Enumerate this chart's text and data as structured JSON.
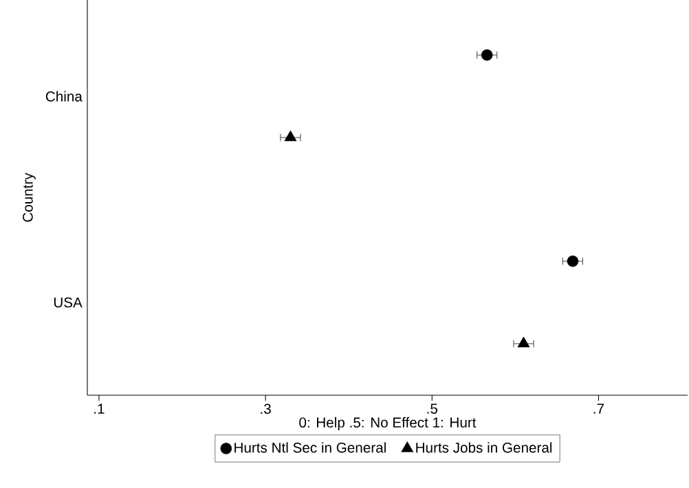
{
  "chart_data": {
    "type": "scatter",
    "orientation": "horizontal",
    "xlabel": "0: Help .5: No Effect 1: Hurt",
    "ylabel": "Country",
    "categories": [
      "China",
      "USA"
    ],
    "series": [
      {
        "name": "Hurts Ntl Sec in General",
        "color": "#000000",
        "marker": "circle",
        "values": [
          0.566,
          0.669
        ],
        "errors": [
          0.012,
          0.012
        ]
      },
      {
        "name": "Hurts Jobs in General",
        "color": "#000000",
        "marker": "triangle",
        "values": [
          0.33,
          0.61
        ],
        "errors": [
          0.012,
          0.012
        ]
      }
    ],
    "xlim": [
      0.086,
      0.807
    ],
    "xticks": [
      {
        "value": 0.1,
        "label": ".1"
      },
      {
        "value": 0.3,
        "label": ".3"
      },
      {
        "value": 0.5,
        "label": ".5"
      },
      {
        "value": 0.7,
        "label": ".7"
      }
    ],
    "legend": "bottom"
  }
}
